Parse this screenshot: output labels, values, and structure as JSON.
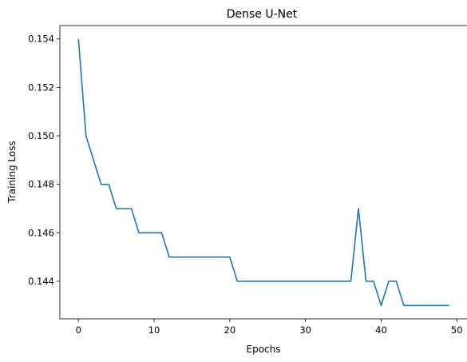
{
  "chart_data": {
    "type": "line",
    "title": "Dense U-Net",
    "xlabel": "Epochs",
    "ylabel": "Training Loss",
    "xlim": [
      -2.45,
      51.45
    ],
    "ylim": [
      0.14245,
      0.15455
    ],
    "xticks": [
      0,
      10,
      20,
      30,
      40,
      50
    ],
    "yticks": [
      0.144,
      0.146,
      0.148,
      0.15,
      0.152,
      0.154
    ],
    "ytick_decimals": 3,
    "grid": false,
    "line_color": "#1f77b4",
    "series": [
      {
        "x": [
          0,
          1,
          2,
          3,
          4,
          5,
          6,
          7,
          8,
          9,
          10,
          11,
          12,
          13,
          14,
          15,
          16,
          17,
          18,
          19,
          20,
          21,
          22,
          23,
          24,
          25,
          26,
          27,
          28,
          29,
          30,
          31,
          32,
          33,
          34,
          35,
          36,
          37,
          38,
          39,
          40,
          41,
          42,
          43,
          44,
          45,
          46,
          47,
          48,
          49
        ],
        "values": [
          0.154,
          0.15,
          0.149,
          0.148,
          0.148,
          0.147,
          0.147,
          0.147,
          0.146,
          0.146,
          0.146,
          0.146,
          0.145,
          0.145,
          0.145,
          0.145,
          0.145,
          0.145,
          0.145,
          0.145,
          0.145,
          0.144,
          0.144,
          0.144,
          0.144,
          0.144,
          0.144,
          0.144,
          0.144,
          0.144,
          0.144,
          0.144,
          0.144,
          0.144,
          0.144,
          0.144,
          0.144,
          0.147,
          0.144,
          0.144,
          0.143,
          0.144,
          0.144,
          0.143,
          0.143,
          0.143,
          0.143,
          0.143,
          0.143,
          0.143
        ]
      }
    ]
  }
}
